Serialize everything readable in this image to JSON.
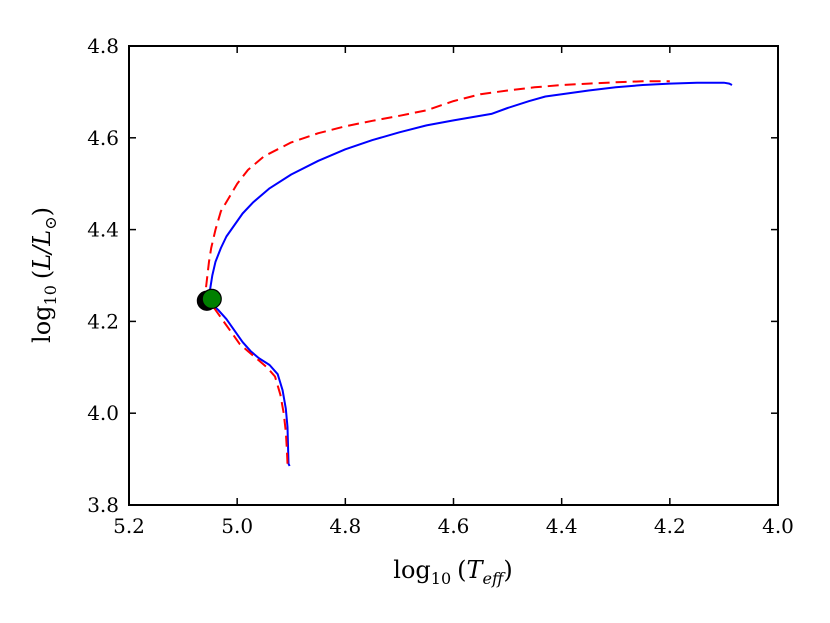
{
  "chart_data": {
    "type": "line",
    "title": "",
    "xlabel": {
      "prefix": "log",
      "sub": "10",
      "open": "(",
      "var": "T",
      "var_sub": "eff",
      "close": ")"
    },
    "ylabel": {
      "prefix": "log",
      "sub": "10",
      "open": "(",
      "var1": "L",
      "slash": "/",
      "var2": "L",
      "var2_sub": "⊙",
      "close": ")"
    },
    "xlim": [
      5.2,
      4.0
    ],
    "ylim": [
      3.8,
      4.8
    ],
    "x_inverted": true,
    "x_ticks": [
      5.2,
      5.0,
      4.8,
      4.6,
      4.4,
      4.2,
      4.0
    ],
    "x_tick_labels": [
      "5.2",
      "5.0",
      "4.8",
      "4.6",
      "4.4",
      "4.2",
      "4.0"
    ],
    "y_ticks": [
      3.8,
      4.0,
      4.2,
      4.4,
      4.6,
      4.8
    ],
    "y_tick_labels": [
      "3.8",
      "4.0",
      "4.2",
      "4.4",
      "4.6",
      "4.8"
    ],
    "grid": false,
    "legend": null,
    "series": [
      {
        "style": "solid",
        "color": "#0000ff",
        "x": [
          4.903,
          4.905,
          4.906,
          4.907,
          4.91,
          4.916,
          4.925,
          4.94,
          4.96,
          4.975,
          4.99,
          5.005,
          5.02,
          5.035,
          5.05,
          5.054,
          5.05,
          5.046,
          5.04,
          5.03,
          5.02,
          5.005,
          4.99,
          4.97,
          4.94,
          4.9,
          4.85,
          4.8,
          4.75,
          4.7,
          4.65,
          4.6,
          4.53,
          4.5,
          4.46,
          4.43,
          4.4,
          4.35,
          4.3,
          4.25,
          4.2,
          4.15,
          4.12,
          4.1,
          4.09,
          4.085
        ],
        "y": [
          3.885,
          3.89,
          3.93,
          3.97,
          4.01,
          4.05,
          4.085,
          4.105,
          4.12,
          4.135,
          4.155,
          4.18,
          4.205,
          4.225,
          4.24,
          4.25,
          4.27,
          4.3,
          4.33,
          4.36,
          4.385,
          4.41,
          4.435,
          4.46,
          4.49,
          4.52,
          4.55,
          4.575,
          4.595,
          4.612,
          4.627,
          4.638,
          4.652,
          4.665,
          4.68,
          4.69,
          4.695,
          4.703,
          4.71,
          4.715,
          4.718,
          4.72,
          4.72,
          4.72,
          4.718,
          4.715
        ]
      },
      {
        "style": "dashed",
        "color": "#ff0000",
        "x": [
          4.907,
          4.908,
          4.91,
          4.914,
          4.92,
          4.93,
          4.945,
          4.96,
          4.98,
          4.995,
          5.01,
          5.025,
          5.04,
          5.05,
          5.056,
          5.058,
          5.055,
          5.052,
          5.048,
          5.04,
          5.03,
          5.015,
          5.0,
          4.98,
          4.95,
          4.9,
          4.85,
          4.8,
          4.75,
          4.7,
          4.65,
          4.6,
          4.55,
          4.5,
          4.45,
          4.4,
          4.35,
          4.3,
          4.25,
          4.2
        ],
        "y": [
          3.89,
          3.92,
          3.96,
          4.0,
          4.04,
          4.08,
          4.1,
          4.115,
          4.135,
          4.15,
          4.175,
          4.2,
          4.225,
          4.24,
          4.25,
          4.27,
          4.3,
          4.33,
          4.36,
          4.4,
          4.44,
          4.47,
          4.5,
          4.53,
          4.56,
          4.59,
          4.61,
          4.625,
          4.637,
          4.648,
          4.66,
          4.68,
          4.695,
          4.703,
          4.71,
          4.715,
          4.718,
          4.721,
          4.723,
          4.723
        ]
      }
    ],
    "markers": [
      {
        "x": 5.056,
        "y": 4.245,
        "fill": "#000000"
      },
      {
        "x": 5.047,
        "y": 4.249,
        "fill": "#008000"
      }
    ]
  }
}
